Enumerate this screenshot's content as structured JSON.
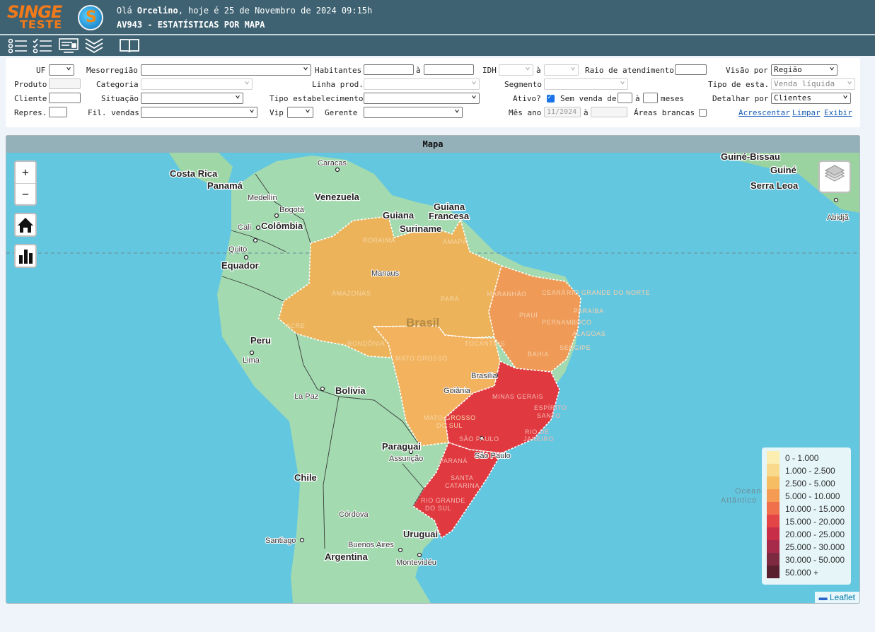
{
  "header": {
    "logo_top": "SINGE",
    "logo_bottom": "TESTE",
    "greeting_prefix": "Olá ",
    "user": "Orcelino",
    "greeting_suffix": ", hoje é 25 de Novembro de 2024 09:15h",
    "screen_title": "AV943 - ESTATÍSTICAS POR MAPA"
  },
  "toolbar": [
    "list-icon",
    "checklist-icon",
    "report-icon",
    "chevrons-down-icon",
    "book-icon"
  ],
  "filters": {
    "uf": "UF",
    "mesorregiao": "Mesorregião",
    "habitantes": "Habitantes",
    "a": "à",
    "idh": "IDH",
    "raio": "Raio de atendimento",
    "visao_por": "Visão por",
    "visao_value": "Região",
    "produto": "Produto",
    "categoria": "Categoria",
    "linha_prod": "Linha prod.",
    "segmento": "Segmento",
    "tipo_esta": "Tipo de esta.",
    "tipo_esta_value": "Venda líquida",
    "cliente": "Cliente",
    "situacao": "Situação",
    "tipo_estabelecimento": "Tipo estabelecimento",
    "ativo": "Ativo?",
    "sem_venda_de": "Sem venda de",
    "meses": "meses",
    "detalhar_por": "Detalhar por",
    "detalhar_value": "Clientes",
    "repres": "Repres.",
    "fil_vendas": "Fil. vendas",
    "vip": "Vip",
    "gerente": "Gerente",
    "mes_ano": "Mês ano",
    "mes_ano_value": "11/2024",
    "areas_brancas": "Áreas brancas",
    "acrescentar": "Acrescentar",
    "limpar": "Limpar",
    "exibir": "Exibir"
  },
  "map": {
    "title": "Mapa",
    "zoom_in": "+",
    "zoom_out": "−",
    "attribution": "Leaflet",
    "labels": {
      "costa_rica": "Costa Rica",
      "panama": "Panamá",
      "caracas": "Caracas",
      "medellin": "Medellín",
      "venezuela": "Venezuela",
      "bogota": "Bogotá",
      "colombia": "Colômbia",
      "cali": "Cali",
      "guiana": "Guiana",
      "guiana_francesa_1": "Guiana",
      "guiana_francesa_2": "Francesa",
      "suriname": "Suriname",
      "quito": "Quito",
      "equador": "Equador",
      "peru": "Peru",
      "lima": "Lima",
      "bolivia": "Bolívia",
      "la_paz": "La Paz",
      "chile": "Chile",
      "paraguai": "Paraguai",
      "assuncao": "Assunção",
      "cordova": "Córdova",
      "santiago": "Santiago",
      "uruguai": "Uruguai",
      "buenos_aires": "Buenos Aires",
      "argentina": "Argentina",
      "montevideu": "Montevidéu",
      "brasil": "Brasil",
      "brasilia": "Brasília",
      "manaus": "Manaus",
      "goiania": "Goiânia",
      "sao_paulo": "São Paulo",
      "guine_bissau": "Guiné-Bissau",
      "guine": "Guiné",
      "serra_leoa": "Serra Leoa",
      "abidja": "Abidjã",
      "oceano_1": "Oceano",
      "oceano_2": "Atlântico"
    },
    "states": {
      "roraima": "RORAIMA",
      "amapa": "AMAPÁ",
      "amazonas": "AMAZONAS",
      "para": "PARÁ",
      "maranhao": "MARANHÃO",
      "ceara": "CEARÁ",
      "rio_grande_do_norte": "RIO GRANDE DO NORTE",
      "paraiba": "PARAÍBA",
      "piaui": "PIAUÍ",
      "pernambuco": "PERNAMBUCO",
      "alagoas": "ALAGOAS",
      "sergipe": "SERGIPE",
      "bahia": "BAHIA",
      "acre": "ACRE",
      "rondonia": "RONDÔNIA",
      "tocantins": "TOCANTINS",
      "mato_grosso": "MATO GROSSO",
      "mato_grosso_do_sul_1": "MATO GROSSO",
      "mato_grosso_do_sul_2": "DO SUL",
      "minas_gerais": "MINAS GERAIS",
      "espirito_santo_1": "ESPÍRITO",
      "espirito_santo_2": "SANTO",
      "rio_de_janeiro_1": "RIO DE",
      "rio_de_janeiro_2": "JANEIRO",
      "sao_paulo": "SÃO PAULO",
      "parana": "PARANÁ",
      "santa_catarina_1": "SANTA",
      "santa_catarina_2": "CATARINA",
      "rio_grande_do_sul_1": "RIO GRANDE",
      "rio_grande_do_sul_2": "DO SUL"
    },
    "region_colors": {
      "norte": "#ecb35a",
      "nordeste": "#ef9a56",
      "centro_oeste": "#f3b25e",
      "sudeste": "#e03a40",
      "sul": "#e03a40"
    },
    "legend": [
      {
        "label": "0 - 1.000",
        "color": "#fcedb1"
      },
      {
        "label": "1.000 - 2.500",
        "color": "#f9d98b"
      },
      {
        "label": "2.500 - 5.000",
        "color": "#f6bd63"
      },
      {
        "label": "5.000 - 10.000",
        "color": "#f59b53"
      },
      {
        "label": "10.000 - 15.000",
        "color": "#f0704c"
      },
      {
        "label": "15.000 - 20.000",
        "color": "#e34546"
      },
      {
        "label": "20.000 - 25.000",
        "color": "#c92e48"
      },
      {
        "label": "25.000 - 30.000",
        "color": "#a82a4a"
      },
      {
        "label": "30.000 - 50.000",
        "color": "#7d2a40"
      },
      {
        "label": "50.000 +",
        "color": "#5a1f2f"
      }
    ]
  }
}
